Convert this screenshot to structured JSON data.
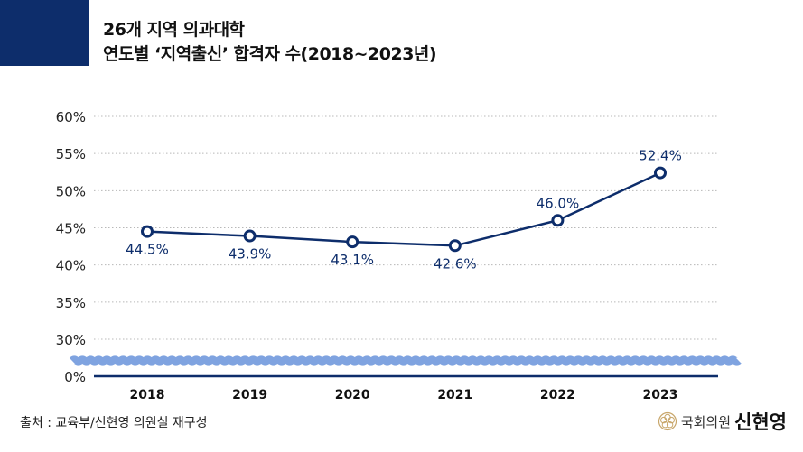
{
  "title": {
    "line1": "26개 지역 의과대학",
    "line2": "연도별 ‘지역출신’ 합격자 수(2018~2023년)"
  },
  "source": "출처 : 교육부/신현영 의원실 재구성",
  "brand": {
    "org": "국회의원",
    "name": "신현영",
    "seal_icon": "national-assembly-seal-icon"
  },
  "colors": {
    "header_block": "#0d2d6b",
    "line": "#0d2d6b",
    "axis_break": "#7fa3e0",
    "grid": "#b8b8b8"
  },
  "chart_data": {
    "type": "line",
    "categories": [
      "2018",
      "2019",
      "2020",
      "2021",
      "2022",
      "2023"
    ],
    "series": [
      {
        "values": [
          44.5,
          43.9,
          43.1,
          42.6,
          46.0,
          52.4
        ]
      }
    ],
    "data_labels": [
      "44.5%",
      "43.9%",
      "43.1%",
      "42.6%",
      "46.0%",
      "52.4%"
    ],
    "ylim": [
      30,
      60
    ],
    "y_ticks": [
      "60%",
      "55%",
      "50%",
      "45%",
      "40%",
      "35%",
      "30%"
    ],
    "y_baseline_tick": "0%",
    "axis_break": true,
    "grid": "horizontal-dotted",
    "legend": "none"
  }
}
